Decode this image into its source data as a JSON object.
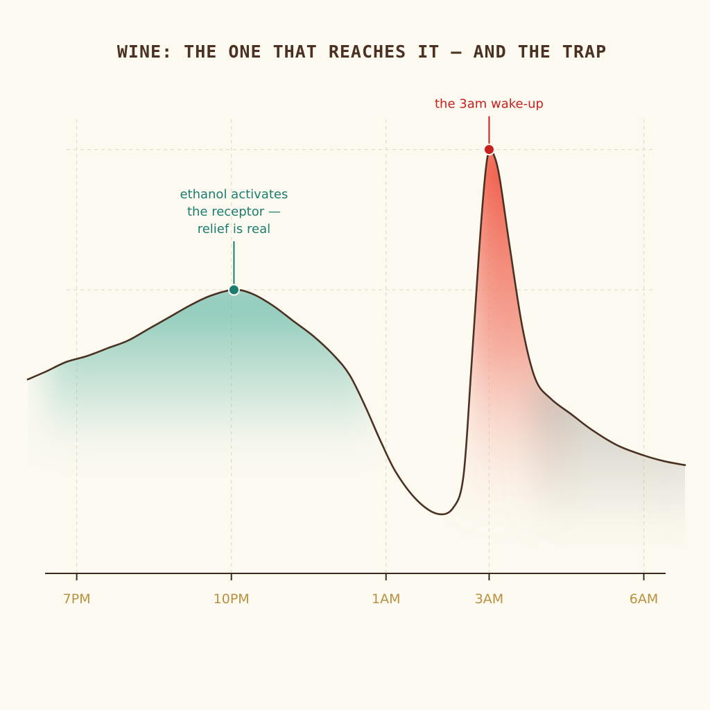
{
  "chart_data": {
    "type": "area",
    "title": "WINE: THE ONE THAT REACHES IT — AND THE TRAP",
    "xlabel": "",
    "ylabel": "",
    "x_ticks": [
      {
        "label": "7PM",
        "hour": 0
      },
      {
        "label": "10PM",
        "hour": 3
      },
      {
        "label": "1AM",
        "hour": 6
      },
      {
        "label": "3AM",
        "hour": 8
      },
      {
        "label": "6AM",
        "hour": 11
      }
    ],
    "xlim": [
      -0.95,
      11.8
    ],
    "ylim": [
      0,
      1
    ],
    "grid": true,
    "series": [
      {
        "points": [
          [
            -0.95,
            0.4
          ],
          [
            -0.6,
            0.42
          ],
          [
            -0.2,
            0.445
          ],
          [
            0.2,
            0.46
          ],
          [
            0.6,
            0.48
          ],
          [
            1.0,
            0.5
          ],
          [
            1.4,
            0.53
          ],
          [
            1.8,
            0.56
          ],
          [
            2.2,
            0.59
          ],
          [
            2.6,
            0.615
          ],
          [
            3.05,
            0.63
          ],
          [
            3.4,
            0.62
          ],
          [
            3.8,
            0.59
          ],
          [
            4.2,
            0.55
          ],
          [
            4.6,
            0.51
          ],
          [
            5.0,
            0.46
          ],
          [
            5.3,
            0.41
          ],
          [
            5.6,
            0.33
          ],
          [
            5.9,
            0.24
          ],
          [
            6.2,
            0.16
          ],
          [
            6.6,
            0.09
          ],
          [
            7.0,
            0.055
          ],
          [
            7.3,
            0.07
          ],
          [
            7.5,
            0.15
          ],
          [
            7.65,
            0.42
          ],
          [
            7.8,
            0.72
          ],
          [
            7.92,
            0.92
          ],
          [
            8.0,
            0.99
          ],
          [
            8.08,
            0.98
          ],
          [
            8.2,
            0.92
          ],
          [
            8.4,
            0.74
          ],
          [
            8.65,
            0.53
          ],
          [
            8.9,
            0.4
          ],
          [
            9.2,
            0.35
          ],
          [
            9.6,
            0.31
          ],
          [
            10.0,
            0.27
          ],
          [
            10.5,
            0.23
          ],
          [
            11.0,
            0.205
          ],
          [
            11.4,
            0.19
          ],
          [
            11.8,
            0.18
          ]
        ]
      }
    ],
    "annotations": [
      {
        "lines": [
          "ethanol activates",
          "the receptor —",
          "relief is real"
        ],
        "x": 3.05,
        "y": 0.63,
        "color": "#1c7c6e"
      },
      {
        "lines": [
          "the 3am wake-up"
        ],
        "x": 8.0,
        "y": 0.99,
        "color": "#c8201c"
      }
    ],
    "colors": {
      "line": "#4a3122",
      "calm_fill": "#5bb5a2",
      "peak_fill": "#f0503c",
      "after_fill": "#a8a49c",
      "grid": "#e6dcc6",
      "axis": "#3a2a1e"
    }
  }
}
